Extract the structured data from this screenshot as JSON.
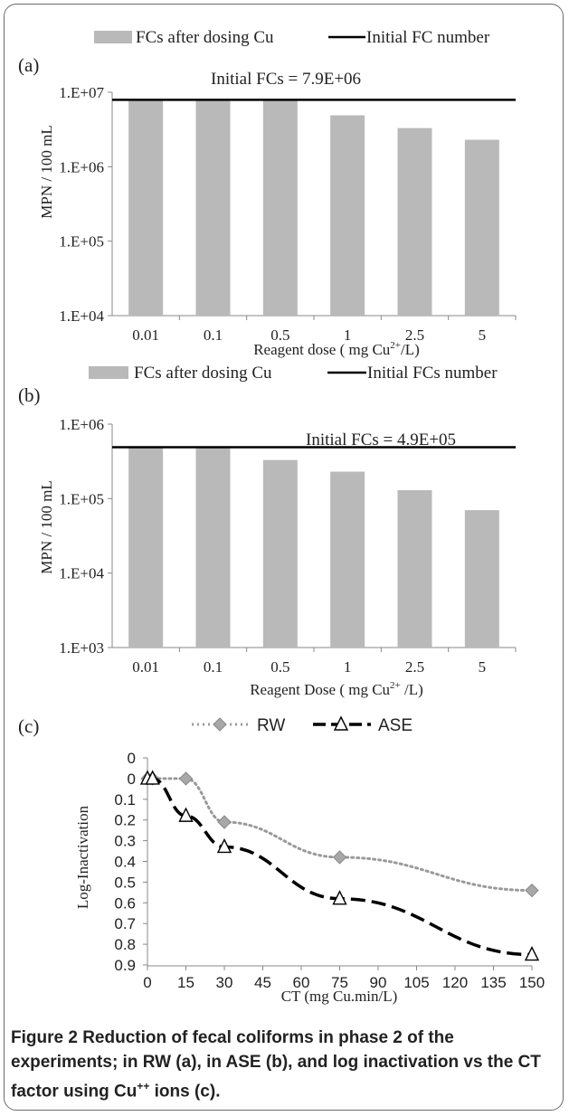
{
  "chart_data": [
    {
      "panel": "(a)",
      "type": "bar",
      "legend": {
        "bar_series": "FCs after dosing Cu",
        "line_series": "Initial FC number",
        "placement": "top"
      },
      "categories": [
        "0.01",
        "0.1",
        "0.5",
        "1",
        "2.5",
        "5"
      ],
      "values": [
        7900000,
        7900000,
        7900000,
        4900000,
        3300000,
        2300000
      ],
      "reference_line": {
        "value": 7900000,
        "label": "Initial FCs = 7.9E+06"
      },
      "ylabel": "MPN / 100 mL",
      "xlabel_parts": [
        "Reagent dose ( mg Cu",
        "2+",
        "/L)"
      ],
      "y_scale": "log",
      "ylim": [
        10000,
        10000000
      ],
      "y_ticks": [
        "1.E+04",
        "1.E+05",
        "1.E+06",
        "1.E+07"
      ],
      "grid": false,
      "colors": {
        "bar": "#b9b9b9",
        "line": "#000000"
      }
    },
    {
      "panel": "(b)",
      "type": "bar",
      "legend": {
        "bar_series": "FCs after dosing Cu",
        "line_series": "Initial FCs number",
        "placement": "top"
      },
      "categories": [
        "0.01",
        "0.1",
        "0.5",
        "1",
        "2.5",
        "5"
      ],
      "values": [
        490000,
        490000,
        330000,
        230000,
        130000,
        70000
      ],
      "reference_line": {
        "value": 490000,
        "label": "Initial FCs = 4.9E+05"
      },
      "ylabel": "MPN / 100 mL",
      "xlabel_parts": [
        "Reagent Dose ( mg Cu",
        "2+",
        " /L)"
      ],
      "y_scale": "log",
      "ylim": [
        1000,
        1000000
      ],
      "y_ticks": [
        "1.E+03",
        "1.E+04",
        "1.E+05",
        "1.E+06"
      ],
      "grid": false,
      "colors": {
        "bar": "#b9b9b9",
        "line": "#000000"
      }
    },
    {
      "panel": "(c)",
      "type": "line",
      "legend_placement": "top",
      "series": [
        {
          "name": "RW",
          "x": [
            0,
            2,
            15,
            30,
            75,
            150
          ],
          "y": [
            0,
            0,
            0,
            0.21,
            0.38,
            0.54
          ],
          "color": "#9a9a9a",
          "marker": "diamond",
          "style": "dotted"
        },
        {
          "name": "ASE",
          "x": [
            0,
            2,
            15,
            30,
            75,
            150
          ],
          "y": [
            0,
            0,
            0.18,
            0.33,
            0.58,
            0.85
          ],
          "color": "#000000",
          "marker": "triangle",
          "style": "dashed"
        }
      ],
      "xlabel": "CT (mg Cu.min/L)",
      "ylabel": "Log-Inactivation",
      "xlim": [
        0,
        150
      ],
      "ylim": [
        0,
        0.9
      ],
      "y_inverted": true,
      "x_ticks": [
        "0",
        "15",
        "30",
        "45",
        "60",
        "75",
        "90",
        "105",
        "120",
        "135",
        "150"
      ],
      "y_ticks": [
        "0",
        "0",
        "0.1",
        "0.2",
        "0.3",
        "0.4",
        "0.5",
        "0.6",
        "0.7",
        "0.8",
        "0.9"
      ],
      "grid": false
    }
  ],
  "caption": {
    "label": "Figure 2",
    "text": "Reduction of fecal coliforms in phase 2 of the experiments; in RW (a), in ASE (b), and  log inactivation vs the CT factor using Cu",
    "superscript": "++",
    "end": " ions (c)."
  }
}
